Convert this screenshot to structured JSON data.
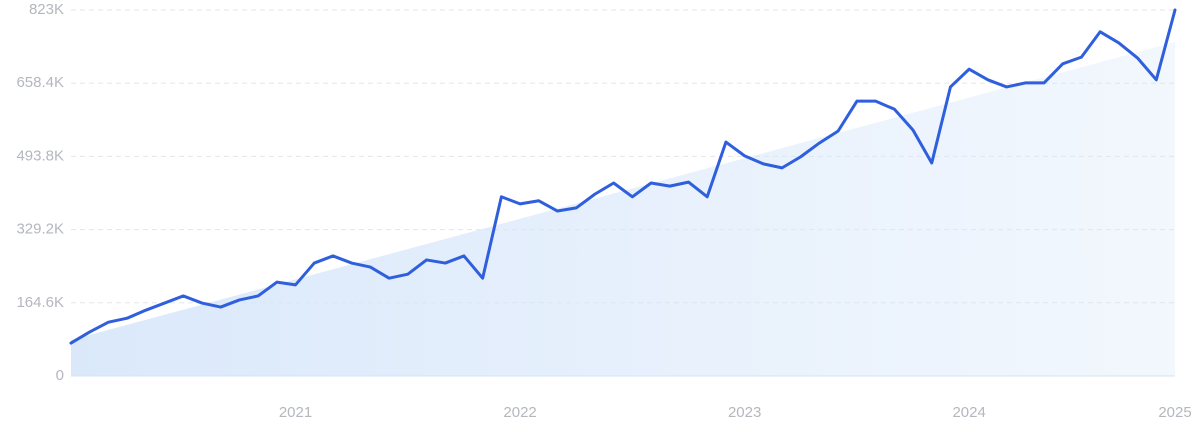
{
  "chart_data": {
    "type": "line",
    "categories": [
      null,
      null,
      null,
      null,
      null,
      null,
      null,
      null,
      null,
      null,
      null,
      null,
      "2021",
      null,
      null,
      null,
      null,
      null,
      null,
      null,
      null,
      null,
      null,
      null,
      "2022",
      null,
      null,
      null,
      null,
      null,
      null,
      null,
      null,
      null,
      null,
      null,
      "2023",
      null,
      null,
      null,
      null,
      null,
      null,
      null,
      null,
      null,
      null,
      null,
      "2024",
      null,
      null,
      null,
      null,
      null,
      null,
      null,
      null,
      null,
      null,
      "2025"
    ],
    "series": [
      {
        "color": "#2f5fdc",
        "values": [
          74000,
          99000,
          121000,
          130000,
          148000,
          164000,
          180000,
          164000,
          155000,
          171000,
          180000,
          211000,
          205000,
          254000,
          270000,
          254000,
          245000,
          220000,
          229000,
          261000,
          254000,
          270000,
          220000,
          403000,
          387000,
          394000,
          371000,
          378000,
          409000,
          434000,
          403000,
          434000,
          427000,
          436000,
          403000,
          526000,
          495000,
          477000,
          468000,
          493000,
          524000,
          551000,
          618000,
          618000,
          600000,
          553000,
          479000,
          650000,
          690000,
          666000,
          650000,
          659000,
          659000,
          702000,
          717000,
          774000,
          749000,
          715000,
          666000,
          823000
        ]
      }
    ],
    "trend": [
      81000,
      751000
    ],
    "trend_color": "#d6e6fa",
    "ylim": [
      0,
      823000
    ],
    "yticks": [
      0,
      {
        "value": 164600,
        "label": "164.6K"
      },
      {
        "value": 329200,
        "label": "329.2K"
      },
      {
        "value": 493800,
        "label": "493.8K"
      },
      {
        "value": 658400,
        "label": "658.4K"
      },
      {
        "value": 823000,
        "label": "823K"
      }
    ],
    "grid": true
  }
}
